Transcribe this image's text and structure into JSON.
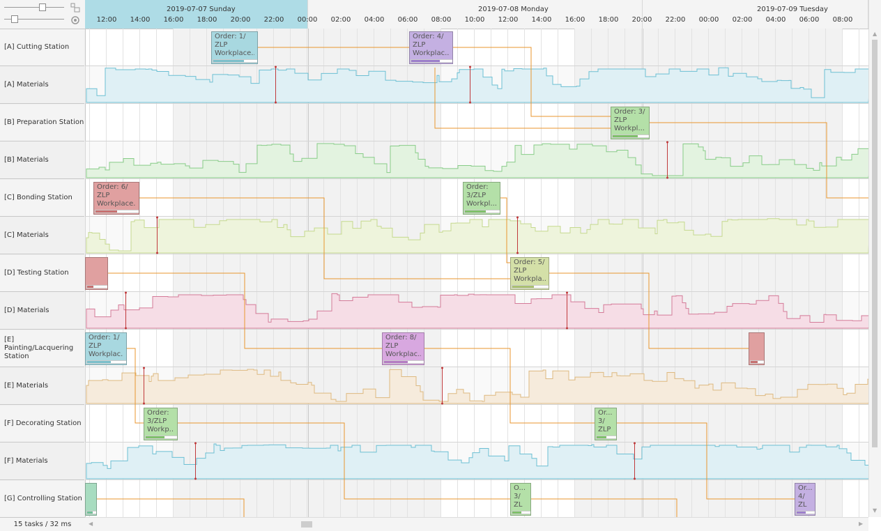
{
  "status": "15 tasks / 32 ms",
  "toolbox": {
    "zoom_icon": "zoom-fit-icon",
    "settings_icon": "gear-icon"
  },
  "days": [
    {
      "label": "2019-07-07 Sunday",
      "highlighted": true
    },
    {
      "label": "2019-07-08 Monday",
      "highlighted": false
    },
    {
      "label": "2019-07-09 Tuesday",
      "highlighted": false
    }
  ],
  "hours": [
    "12:00",
    "14:00",
    "16:00",
    "18:00",
    "20:00",
    "22:00",
    "00:00",
    "02:00",
    "04:00",
    "06:00",
    "08:00",
    "10:00",
    "12:00",
    "14:00",
    "16:00",
    "18:00",
    "20:00",
    "22:00",
    "00:00",
    "02:00",
    "04:00",
    "06:00",
    "08:00"
  ],
  "rows": [
    {
      "label": "[A] Cutting Station",
      "type": "station"
    },
    {
      "label": "[A] Materials",
      "type": "materials",
      "color": "#6cbfd3",
      "fill": "#dff0f5"
    },
    {
      "label": "[B] Preparation Station",
      "type": "station"
    },
    {
      "label": "[B] Materials",
      "type": "materials",
      "color": "#88cc88",
      "fill": "#e3f3e0"
    },
    {
      "label": "[C] Bonding Station",
      "type": "station"
    },
    {
      "label": "[C] Materials",
      "type": "materials",
      "color": "#c5d98e",
      "fill": "#eef4dc"
    },
    {
      "label": "[D] Testing Station",
      "type": "station"
    },
    {
      "label": "[D] Materials",
      "type": "materials",
      "color": "#d47a98",
      "fill": "#f6dde6"
    },
    {
      "label": "[E] Painting/Lacquering Station",
      "type": "station"
    },
    {
      "label": "[E] Materials",
      "type": "materials",
      "color": "#ddb980",
      "fill": "#f6ebdc"
    },
    {
      "label": "[F] Decorating Station",
      "type": "station"
    },
    {
      "label": "[F] Materials",
      "type": "materials",
      "color": "#6cbfd3",
      "fill": "#dff0f5"
    },
    {
      "label": "[G] Controlling Station",
      "type": "station"
    }
  ],
  "tasks": [
    {
      "text": "Order: 1/\nZLP\nWorkplace...",
      "color": "#a8d8e0",
      "bar": "#7cc0cc",
      "progress": 0.7
    },
    {
      "text": "Order: 4/\nZLP\nWorkplac...",
      "color": "#c4b0e2",
      "bar": "#9d7fcc",
      "progress": 0.7
    },
    {
      "text": "Order: 3/\nZLP\nWorkpl...",
      "color": "#b4e0a8",
      "bar": "#7fc06a",
      "progress": 0.7
    },
    {
      "text": "Order: 6/\nZLP\nWorkplace...",
      "color": "#e0a0a0",
      "bar": "#c77070",
      "progress": 0.5
    },
    {
      "text": "Order:\n3/ZLP\nWorkpl...",
      "color": "#b4e0a8",
      "bar": "#7fc06a",
      "progress": 0.6
    },
    {
      "text": "Order: 5/\nZLP\nWorkpla...",
      "color": "#d4e0a8",
      "bar": "#aac070",
      "progress": 0.6
    },
    {
      "text": "",
      "color": "#e0a0a0",
      "bar": "#c77070",
      "progress": 0.3
    },
    {
      "text": "Order: 1/\nZLP\nWorkplac...",
      "color": "#a8d8e0",
      "bar": "#7cc0cc",
      "progress": 0.6
    },
    {
      "text": "Order: 8/\nZLP\nWorkplac...",
      "color": "#d8a8e0",
      "bar": "#b57cc4",
      "progress": 0.6
    },
    {
      "text": "",
      "color": "#e0a0a0",
      "bar": "#c77070",
      "progress": 0.5
    },
    {
      "text": "Order:\n3/ZLP\nWorkp...",
      "color": "#b4e0a8",
      "bar": "#7fc06a",
      "progress": 0.6
    },
    {
      "text": "Or...\n3/\nZLP",
      "color": "#b4e0a8",
      "bar": "#7fc06a",
      "progress": 0.5
    },
    {
      "text": "",
      "color": "#a8dcc0",
      "bar": "#70c098",
      "progress": 0.6
    },
    {
      "text": "O...\n3/\nZL",
      "color": "#b4e0a8",
      "bar": "#7fc06a",
      "progress": 0.5
    },
    {
      "text": "Or...\n4/\nZL",
      "color": "#c4b0e2",
      "bar": "#9d7fcc",
      "progress": 0.5
    }
  ],
  "link_color": "#e8962e",
  "marker_color": "#c0393b"
}
